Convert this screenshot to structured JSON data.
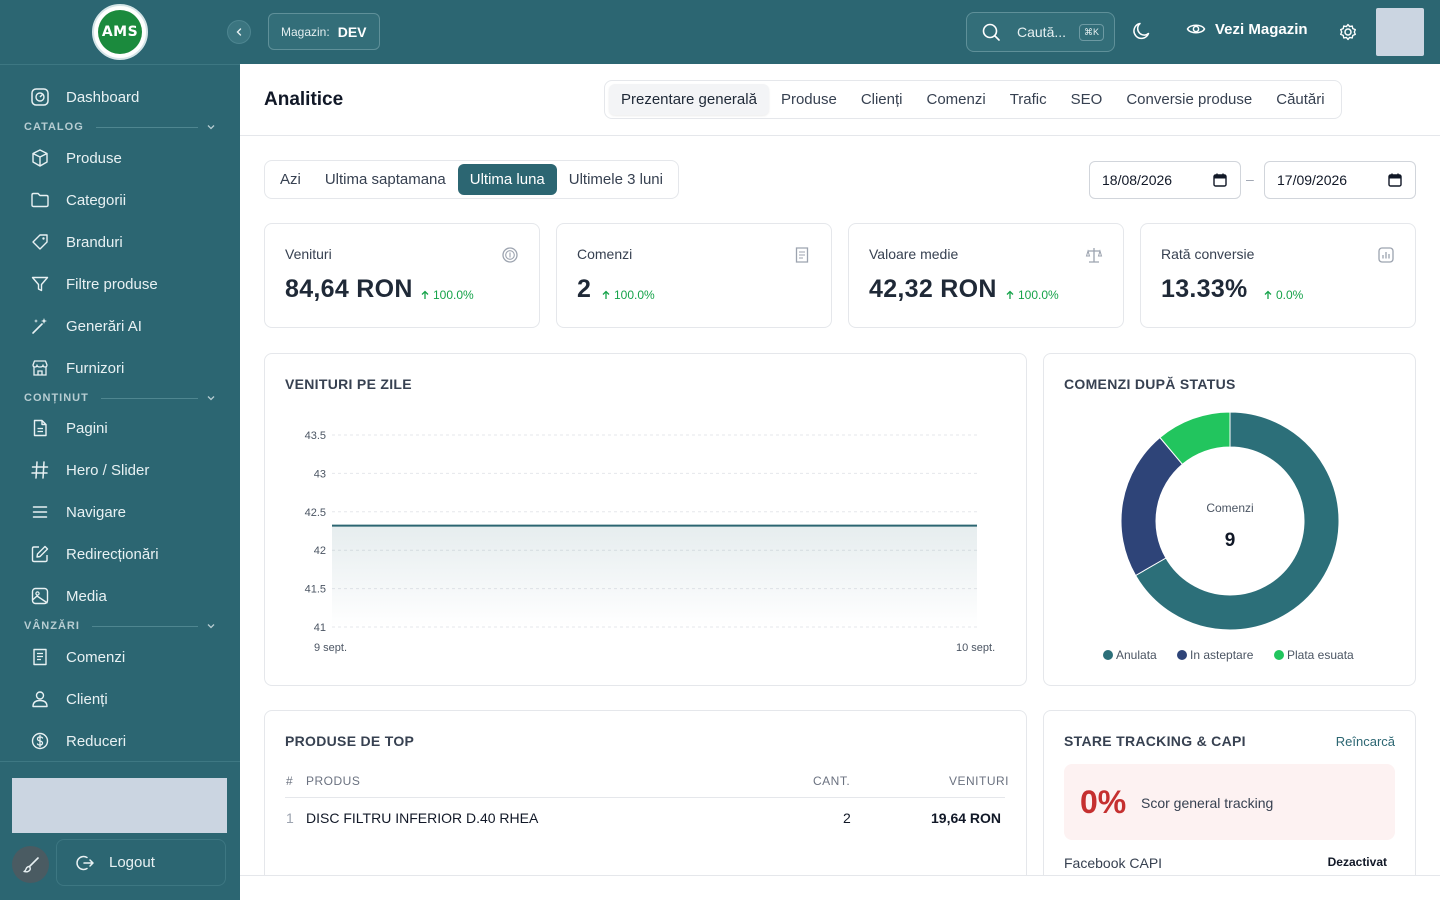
{
  "topbar": {
    "logo_text": "AMS",
    "store_label": "Magazin:",
    "store_value": "DEV",
    "search_placeholder": "Caută...",
    "search_shortcut": "⌘K",
    "view_store_label": "Vezi Magazin"
  },
  "sidebar": {
    "dashboard": "Dashboard",
    "sections": {
      "catalog": "CATALOG",
      "content": "CONȚINUT",
      "sales": "VÂNZĂRI"
    },
    "catalog_items": [
      "Produse",
      "Categorii",
      "Branduri",
      "Filtre produse",
      "Generări AI",
      "Furnizori"
    ],
    "content_items": [
      "Pagini",
      "Hero / Slider",
      "Navigare",
      "Redirecționări",
      "Media"
    ],
    "sales_items": [
      "Comenzi",
      "Clienți",
      "Reduceri"
    ],
    "logout_label": "Logout"
  },
  "header": {
    "title": "Analitice",
    "tabs": [
      "Prezentare generală",
      "Produse",
      "Clienți",
      "Comenzi",
      "Trafic",
      "SEO",
      "Conversie produse",
      "Căutări"
    ]
  },
  "period": {
    "options": [
      "Azi",
      "Ultima saptamana",
      "Ultima luna",
      "Ultimele 3 luni"
    ],
    "active": "Ultima luna",
    "date_from": "18/08/2026",
    "date_to": "17/09/2026",
    "separator": "–"
  },
  "kpis": [
    {
      "label": "Venituri",
      "value": "84,64 RON",
      "change": "100.0%"
    },
    {
      "label": "Comenzi",
      "value": "2",
      "change": "100.0%"
    },
    {
      "label": "Valoare medie",
      "value": "42,32 RON",
      "change": "100.0%"
    },
    {
      "label": "Rată conversie",
      "value": "13.33%",
      "change": "0.0%"
    }
  ],
  "revenue_chart": {
    "title": "VENITURI PE ZILE"
  },
  "status_chart": {
    "title": "COMENZI DUPĂ STATUS",
    "center_label": "Comenzi",
    "center_value": "9"
  },
  "top_products": {
    "title": "PRODUSE DE TOP",
    "columns": [
      "#",
      "PRODUS",
      "CANT.",
      "VENITURI"
    ],
    "rows": [
      {
        "rank": "1",
        "name": "DISC FILTRU INFERIOR D.40 RHEA",
        "qty": "2",
        "revenue": "19,64 RON"
      }
    ]
  },
  "tracking": {
    "title": "STARE TRACKING & CAPI",
    "reload_label": "Reîncarcă",
    "score": "0%",
    "score_label": "Scor general tracking",
    "rows": [
      {
        "name": "Facebook CAPI",
        "status": "Dezactivat"
      }
    ]
  },
  "chart_data": [
    {
      "type": "area",
      "title": "VENITURI PE ZILE",
      "x": [
        "9 sept.",
        "10 sept."
      ],
      "series": [
        {
          "values": [
            42.32,
            42.32
          ]
        }
      ],
      "y_ticks": [
        41,
        41.5,
        42,
        42.5,
        43,
        43.5
      ],
      "ylim": [
        41,
        43.5
      ],
      "grid": true,
      "color": "#2c6672"
    },
    {
      "type": "pie",
      "title": "COMENZI DUPĂ STATUS",
      "donut": true,
      "categories": [
        "Anulata",
        "In asteptare",
        "Plata esuata"
      ],
      "values": [
        6,
        2,
        1
      ],
      "colors": [
        "#2c6f79",
        "#2e4478",
        "#22c55e"
      ],
      "legend": "bottom"
    }
  ]
}
